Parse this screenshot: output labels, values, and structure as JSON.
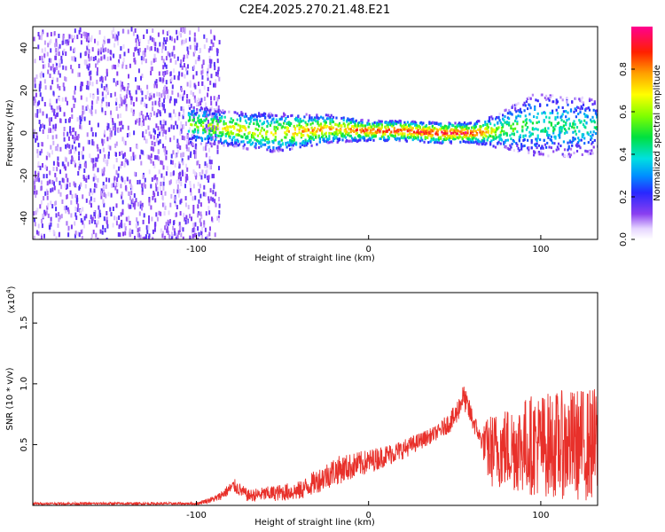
{
  "chart_data": [
    {
      "type": "heatmap",
      "title": "C2E4.2025.270.21.48.E21",
      "xlabel": "Height of straight line (km)",
      "ylabel": "Frequency (Hz)",
      "xlim": [
        -195,
        133
      ],
      "ylim": [
        -50,
        50
      ],
      "x_ticks": [
        -100,
        0,
        100
      ],
      "x_tick_labels": [
        "-100",
        "0",
        "100"
      ],
      "y_ticks": [
        -40,
        -20,
        0,
        20,
        40
      ],
      "y_tick_labels": [
        "-40",
        "-20",
        "0",
        "20",
        "40"
      ],
      "colorbar": {
        "label": "Normalized spectral amplitude",
        "range": [
          0,
          1
        ],
        "ticks": [
          0.0,
          0.2,
          0.4,
          0.6,
          0.8
        ],
        "tick_labels": [
          "0.0",
          "0.2",
          "0.4",
          "0.6",
          "0.8"
        ]
      },
      "noise_region": {
        "x_range": [
          -195,
          -95
        ],
        "freq_range": [
          -50,
          50
        ],
        "amplitude": 0.1
      },
      "signal_band": [
        {
          "x": -105,
          "center_hz": 4,
          "half_width_hz": 6,
          "peak": 0.55
        },
        {
          "x": -80,
          "center_hz": 2,
          "half_width_hz": 5,
          "peak": 0.75
        },
        {
          "x": -60,
          "center_hz": 0,
          "half_width_hz": 6,
          "peak": 0.65
        },
        {
          "x": -40,
          "center_hz": 1,
          "half_width_hz": 5,
          "peak": 0.8
        },
        {
          "x": -20,
          "center_hz": 2,
          "half_width_hz": 4,
          "peak": 0.8
        },
        {
          "x": 0,
          "center_hz": 1,
          "half_width_hz": 3,
          "peak": 0.9
        },
        {
          "x": 20,
          "center_hz": 1,
          "half_width_hz": 3,
          "peak": 0.95
        },
        {
          "x": 40,
          "center_hz": 0,
          "half_width_hz": 3,
          "peak": 0.95
        },
        {
          "x": 60,
          "center_hz": 0,
          "half_width_hz": 3,
          "peak": 0.95
        },
        {
          "x": 75,
          "center_hz": 1,
          "half_width_hz": 5,
          "peak": 0.6
        },
        {
          "x": 95,
          "center_hz": 4,
          "half_width_hz": 9,
          "peak": 0.5
        },
        {
          "x": 115,
          "center_hz": 3,
          "half_width_hz": 9,
          "peak": 0.45
        },
        {
          "x": 133,
          "center_hz": 3,
          "half_width_hz": 8,
          "peak": 0.45
        }
      ]
    },
    {
      "type": "line",
      "title": "",
      "xlabel": "Height of straight line (km)",
      "ylabel": "SNR (10 * v/v)",
      "y_multiplier_label": "(x10",
      "y_multiplier_exponent": "4",
      "y_multiplier_close": ")",
      "xlim": [
        -195,
        133
      ],
      "ylim": [
        0,
        1.75
      ],
      "x_ticks": [
        -100,
        0,
        100
      ],
      "x_tick_labels": [
        "-100",
        "0",
        "100"
      ],
      "y_ticks": [
        0.5,
        1.0,
        1.5
      ],
      "y_tick_labels": [
        "0.5",
        "1.0",
        "1.5"
      ],
      "series": [
        {
          "name": "SNR",
          "color": "#e8302a",
          "envelope": [
            {
              "x": -195,
              "mean": 0.015,
              "noise": 0.01
            },
            {
              "x": -100,
              "mean": 0.015,
              "noise": 0.01
            },
            {
              "x": -88,
              "mean": 0.06,
              "noise": 0.03
            },
            {
              "x": -78,
              "mean": 0.16,
              "noise": 0.06
            },
            {
              "x": -70,
              "mean": 0.08,
              "noise": 0.05
            },
            {
              "x": -40,
              "mean": 0.12,
              "noise": 0.08
            },
            {
              "x": -20,
              "mean": 0.28,
              "noise": 0.12
            },
            {
              "x": 0,
              "mean": 0.36,
              "noise": 0.1
            },
            {
              "x": 20,
              "mean": 0.46,
              "noise": 0.08
            },
            {
              "x": 40,
              "mean": 0.6,
              "noise": 0.06
            },
            {
              "x": 50,
              "mean": 0.72,
              "noise": 0.1
            },
            {
              "x": 55,
              "mean": 0.9,
              "noise": 0.1
            },
            {
              "x": 60,
              "mean": 0.72,
              "noise": 0.1
            },
            {
              "x": 65,
              "mean": 0.55,
              "noise": 0.06
            },
            {
              "x": 70,
              "mean": 0.45,
              "noise": 0.3
            },
            {
              "x": 95,
              "mean": 0.5,
              "noise": 0.42
            },
            {
              "x": 133,
              "mean": 0.5,
              "noise": 0.48
            }
          ]
        }
      ]
    }
  ]
}
